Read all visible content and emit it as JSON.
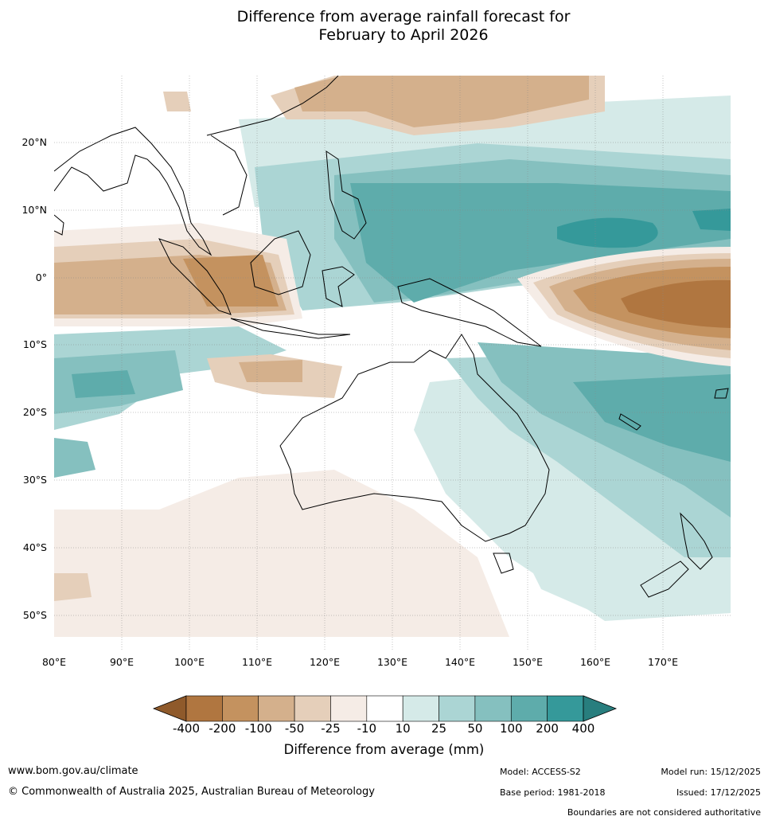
{
  "title": {
    "line1": "Difference from average rainfall forecast for",
    "line2": "February to April 2026"
  },
  "map": {
    "lat_labels": [
      "20°N",
      "10°N",
      "0°",
      "10°S",
      "20°S",
      "30°S",
      "40°S",
      "50°S"
    ],
    "lon_labels": [
      "80°E",
      "90°E",
      "100°E",
      "110°E",
      "120°E",
      "130°E",
      "140°E",
      "150°E",
      "160°E",
      "170°E"
    ]
  },
  "legend": {
    "title": "Difference from average (mm)",
    "ticks": [
      "-400",
      "-200",
      "-100",
      "-50",
      "-25",
      "-10",
      "10",
      "25",
      "50",
      "100",
      "200",
      "400"
    ],
    "colors": [
      "#8f5a2b",
      "#b07640",
      "#c4925f",
      "#d4b08c",
      "#e5cfba",
      "#f5ece6",
      "#ffffff",
      "#d5eae8",
      "#abd5d4",
      "#85c0bf",
      "#5eacab",
      "#35999a",
      "#287e7e"
    ]
  },
  "footer": {
    "website": "www.bom.gov.au/climate",
    "copyright": "© Commonwealth of Australia 2025, Australian Bureau of Meteorology",
    "model": "Model: ACCESS-S2",
    "base_period": "Base period: 1981-2018",
    "model_run": "Model run: 15/12/2025",
    "issued": "Issued: 17/12/2025",
    "disclaimer": "Boundaries are not considered authoritative"
  }
}
